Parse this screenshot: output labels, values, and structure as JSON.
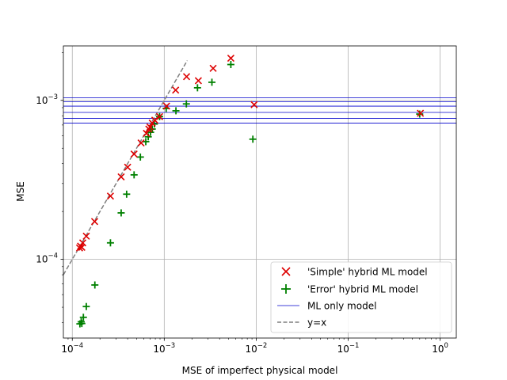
{
  "chart_data": {
    "type": "scatter",
    "xlabel": "MSE of imperfect physical model",
    "ylabel": "MSE",
    "xscale": "log",
    "yscale": "log",
    "xlim": [
      8e-05,
      1.5
    ],
    "ylim": [
      3.2e-05,
      0.0022
    ],
    "grid": true,
    "legend_position": "lower-right",
    "x_ticks": [
      {
        "value": 0.0001,
        "base": "10",
        "exp": "−4"
      },
      {
        "value": 0.001,
        "base": "10",
        "exp": "−3"
      },
      {
        "value": 0.01,
        "base": "10",
        "exp": "−2"
      },
      {
        "value": 0.1,
        "base": "10",
        "exp": "−1"
      },
      {
        "value": 1,
        "base": "10",
        "exp": "0"
      }
    ],
    "y_ticks": [
      {
        "value": 0.0001,
        "base": "10",
        "exp": "−4"
      },
      {
        "value": 0.001,
        "base": "10",
        "exp": "−3"
      }
    ],
    "series": [
      {
        "name": "'Simple' hybrid ML model",
        "marker": "x",
        "color": "#dd0000",
        "points": [
          [
            0.00012,
            0.000118
          ],
          [
            0.000123,
            0.000121
          ],
          [
            0.000127,
            0.000119
          ],
          [
            0.00013,
            0.000127
          ],
          [
            0.000142,
            0.00014
          ],
          [
            0.000175,
            0.000173
          ],
          [
            0.00026,
            0.00025
          ],
          [
            0.00034,
            0.00033
          ],
          [
            0.0004,
            0.00038
          ],
          [
            0.00047,
            0.00046
          ],
          [
            0.00056,
            0.00054
          ],
          [
            0.00064,
            0.00062
          ],
          [
            0.00068,
            0.00066
          ],
          [
            0.0007,
            0.00068
          ],
          [
            0.00074,
            0.00072
          ],
          [
            0.00079,
            0.00075
          ],
          [
            0.00089,
            0.00079
          ],
          [
            0.00106,
            0.00092
          ],
          [
            0.00133,
            0.00116
          ],
          [
            0.00175,
            0.00141
          ],
          [
            0.00235,
            0.00133
          ],
          [
            0.0034,
            0.00159
          ],
          [
            0.0053,
            0.00184
          ],
          [
            0.0095,
            0.00094
          ],
          [
            0.61,
            0.00083
          ]
        ]
      },
      {
        "name": "'Error' hybrid ML model",
        "marker": "+",
        "color": "#008000",
        "points": [
          [
            0.000121,
            3.93e-05
          ],
          [
            0.000125,
            4.05e-05
          ],
          [
            0.000127,
            3.95e-05
          ],
          [
            0.000132,
            4.32e-05
          ],
          [
            0.000142,
            5.05e-05
          ],
          [
            0.000176,
            6.9e-05
          ],
          [
            0.00026,
            0.000127
          ],
          [
            0.00034,
            0.000196
          ],
          [
            0.00039,
            0.000257
          ],
          [
            0.00047,
            0.00034
          ],
          [
            0.00055,
            0.00044
          ],
          [
            0.00063,
            0.00055
          ],
          [
            0.00067,
            0.00059
          ],
          [
            0.00071,
            0.00063
          ],
          [
            0.00074,
            0.00066
          ],
          [
            0.00078,
            0.00071
          ],
          [
            0.00089,
            0.00079
          ],
          [
            0.00105,
            0.00089
          ],
          [
            0.00134,
            0.00086
          ],
          [
            0.00174,
            0.00095
          ],
          [
            0.0023,
            0.0012
          ],
          [
            0.0033,
            0.0013
          ],
          [
            0.0053,
            0.00168
          ],
          [
            0.0092,
            0.00057
          ],
          [
            0.6,
            0.00082
          ]
        ]
      },
      {
        "name": "ML only model",
        "type": "hline",
        "color": "#0000cc",
        "values": [
          0.00072,
          0.00077,
          0.00084,
          0.00092,
          0.00098,
          0.00104
        ]
      },
      {
        "name": "y=x",
        "type": "line",
        "style": "dashed",
        "color": "#7f7f7f",
        "points": [
          [
            8e-05,
            8e-05
          ],
          [
            0.00178,
            0.00178
          ]
        ]
      }
    ]
  }
}
